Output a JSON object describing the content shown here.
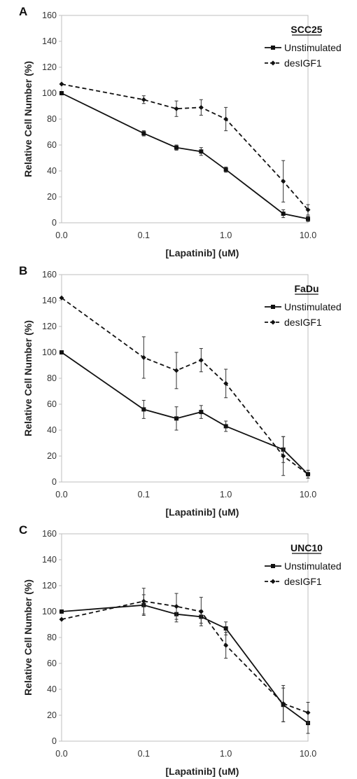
{
  "chart_data": [
    {
      "type": "line",
      "panel_label": "A",
      "title": "SCC25",
      "xlabel": "[Lapatinib] (uM)",
      "ylabel": "Relative Cell Number (%)",
      "x_scale": "log",
      "x_ticks": [
        "0.0",
        "0.1",
        "1.0",
        "10.0"
      ],
      "y_ticks": [
        "0",
        "20",
        "40",
        "60",
        "80",
        "100",
        "120",
        "140",
        "160"
      ],
      "ylim": [
        0,
        160
      ],
      "grid": false,
      "legend_position": "top-right",
      "x": [
        0,
        0.1,
        0.25,
        0.5,
        1,
        5,
        10
      ],
      "series": [
        {
          "name": "Unstimulated",
          "style": "solid",
          "marker": "square",
          "values": [
            100,
            69,
            58,
            55,
            41,
            7,
            3
          ],
          "errors": [
            0,
            2,
            2,
            3,
            2,
            3,
            2
          ]
        },
        {
          "name": "desIGF1",
          "style": "dashed",
          "marker": "diamond",
          "values": [
            107,
            95,
            88,
            89,
            80,
            32,
            10
          ],
          "errors": [
            0,
            3,
            6,
            6,
            9,
            16,
            4
          ]
        }
      ]
    },
    {
      "type": "line",
      "panel_label": "B",
      "title": "FaDu",
      "xlabel": "[Lapatinib] (uM)",
      "ylabel": "Relative Cell Number (%)",
      "x_scale": "log",
      "x_ticks": [
        "0.0",
        "0.1",
        "1.0",
        "10.0"
      ],
      "y_ticks": [
        "0",
        "20",
        "40",
        "60",
        "80",
        "100",
        "120",
        "140",
        "160"
      ],
      "ylim": [
        0,
        160
      ],
      "grid": false,
      "legend_position": "top-right",
      "x": [
        0,
        0.1,
        0.25,
        0.5,
        1,
        5,
        10
      ],
      "series": [
        {
          "name": "Unstimulated",
          "style": "solid",
          "marker": "square",
          "values": [
            100,
            56,
            49,
            54,
            43,
            25,
            6
          ],
          "errors": [
            0,
            7,
            9,
            5,
            4,
            10,
            3
          ]
        },
        {
          "name": "desIGF1",
          "style": "dashed",
          "marker": "diamond",
          "values": [
            142,
            96,
            86,
            94,
            76,
            20,
            6
          ],
          "errors": [
            0,
            16,
            14,
            9,
            11,
            15,
            3
          ]
        }
      ]
    },
    {
      "type": "line",
      "panel_label": "C",
      "title": "UNC10",
      "xlabel": "[Lapatinib] (uM)",
      "ylabel": "Relative Cell Number (%)",
      "x_scale": "log",
      "x_ticks": [
        "0.0",
        "0.1",
        "1.0",
        "10.0"
      ],
      "y_ticks": [
        "0",
        "20",
        "40",
        "60",
        "80",
        "100",
        "120",
        "140",
        "160"
      ],
      "ylim": [
        0,
        160
      ],
      "grid": false,
      "legend_position": "top-right",
      "x": [
        0,
        0.1,
        0.25,
        0.5,
        1,
        5,
        10
      ],
      "series": [
        {
          "name": "Unstimulated",
          "style": "solid",
          "marker": "square",
          "values": [
            100,
            105,
            98,
            96,
            87,
            28,
            14
          ],
          "errors": [
            0,
            8,
            6,
            5,
            5,
            13,
            8
          ]
        },
        {
          "name": "desIGF1",
          "style": "dashed",
          "marker": "diamond",
          "values": [
            94,
            108,
            104,
            100,
            74,
            29,
            22
          ],
          "errors": [
            0,
            10,
            10,
            11,
            10,
            14,
            8
          ]
        }
      ]
    }
  ]
}
